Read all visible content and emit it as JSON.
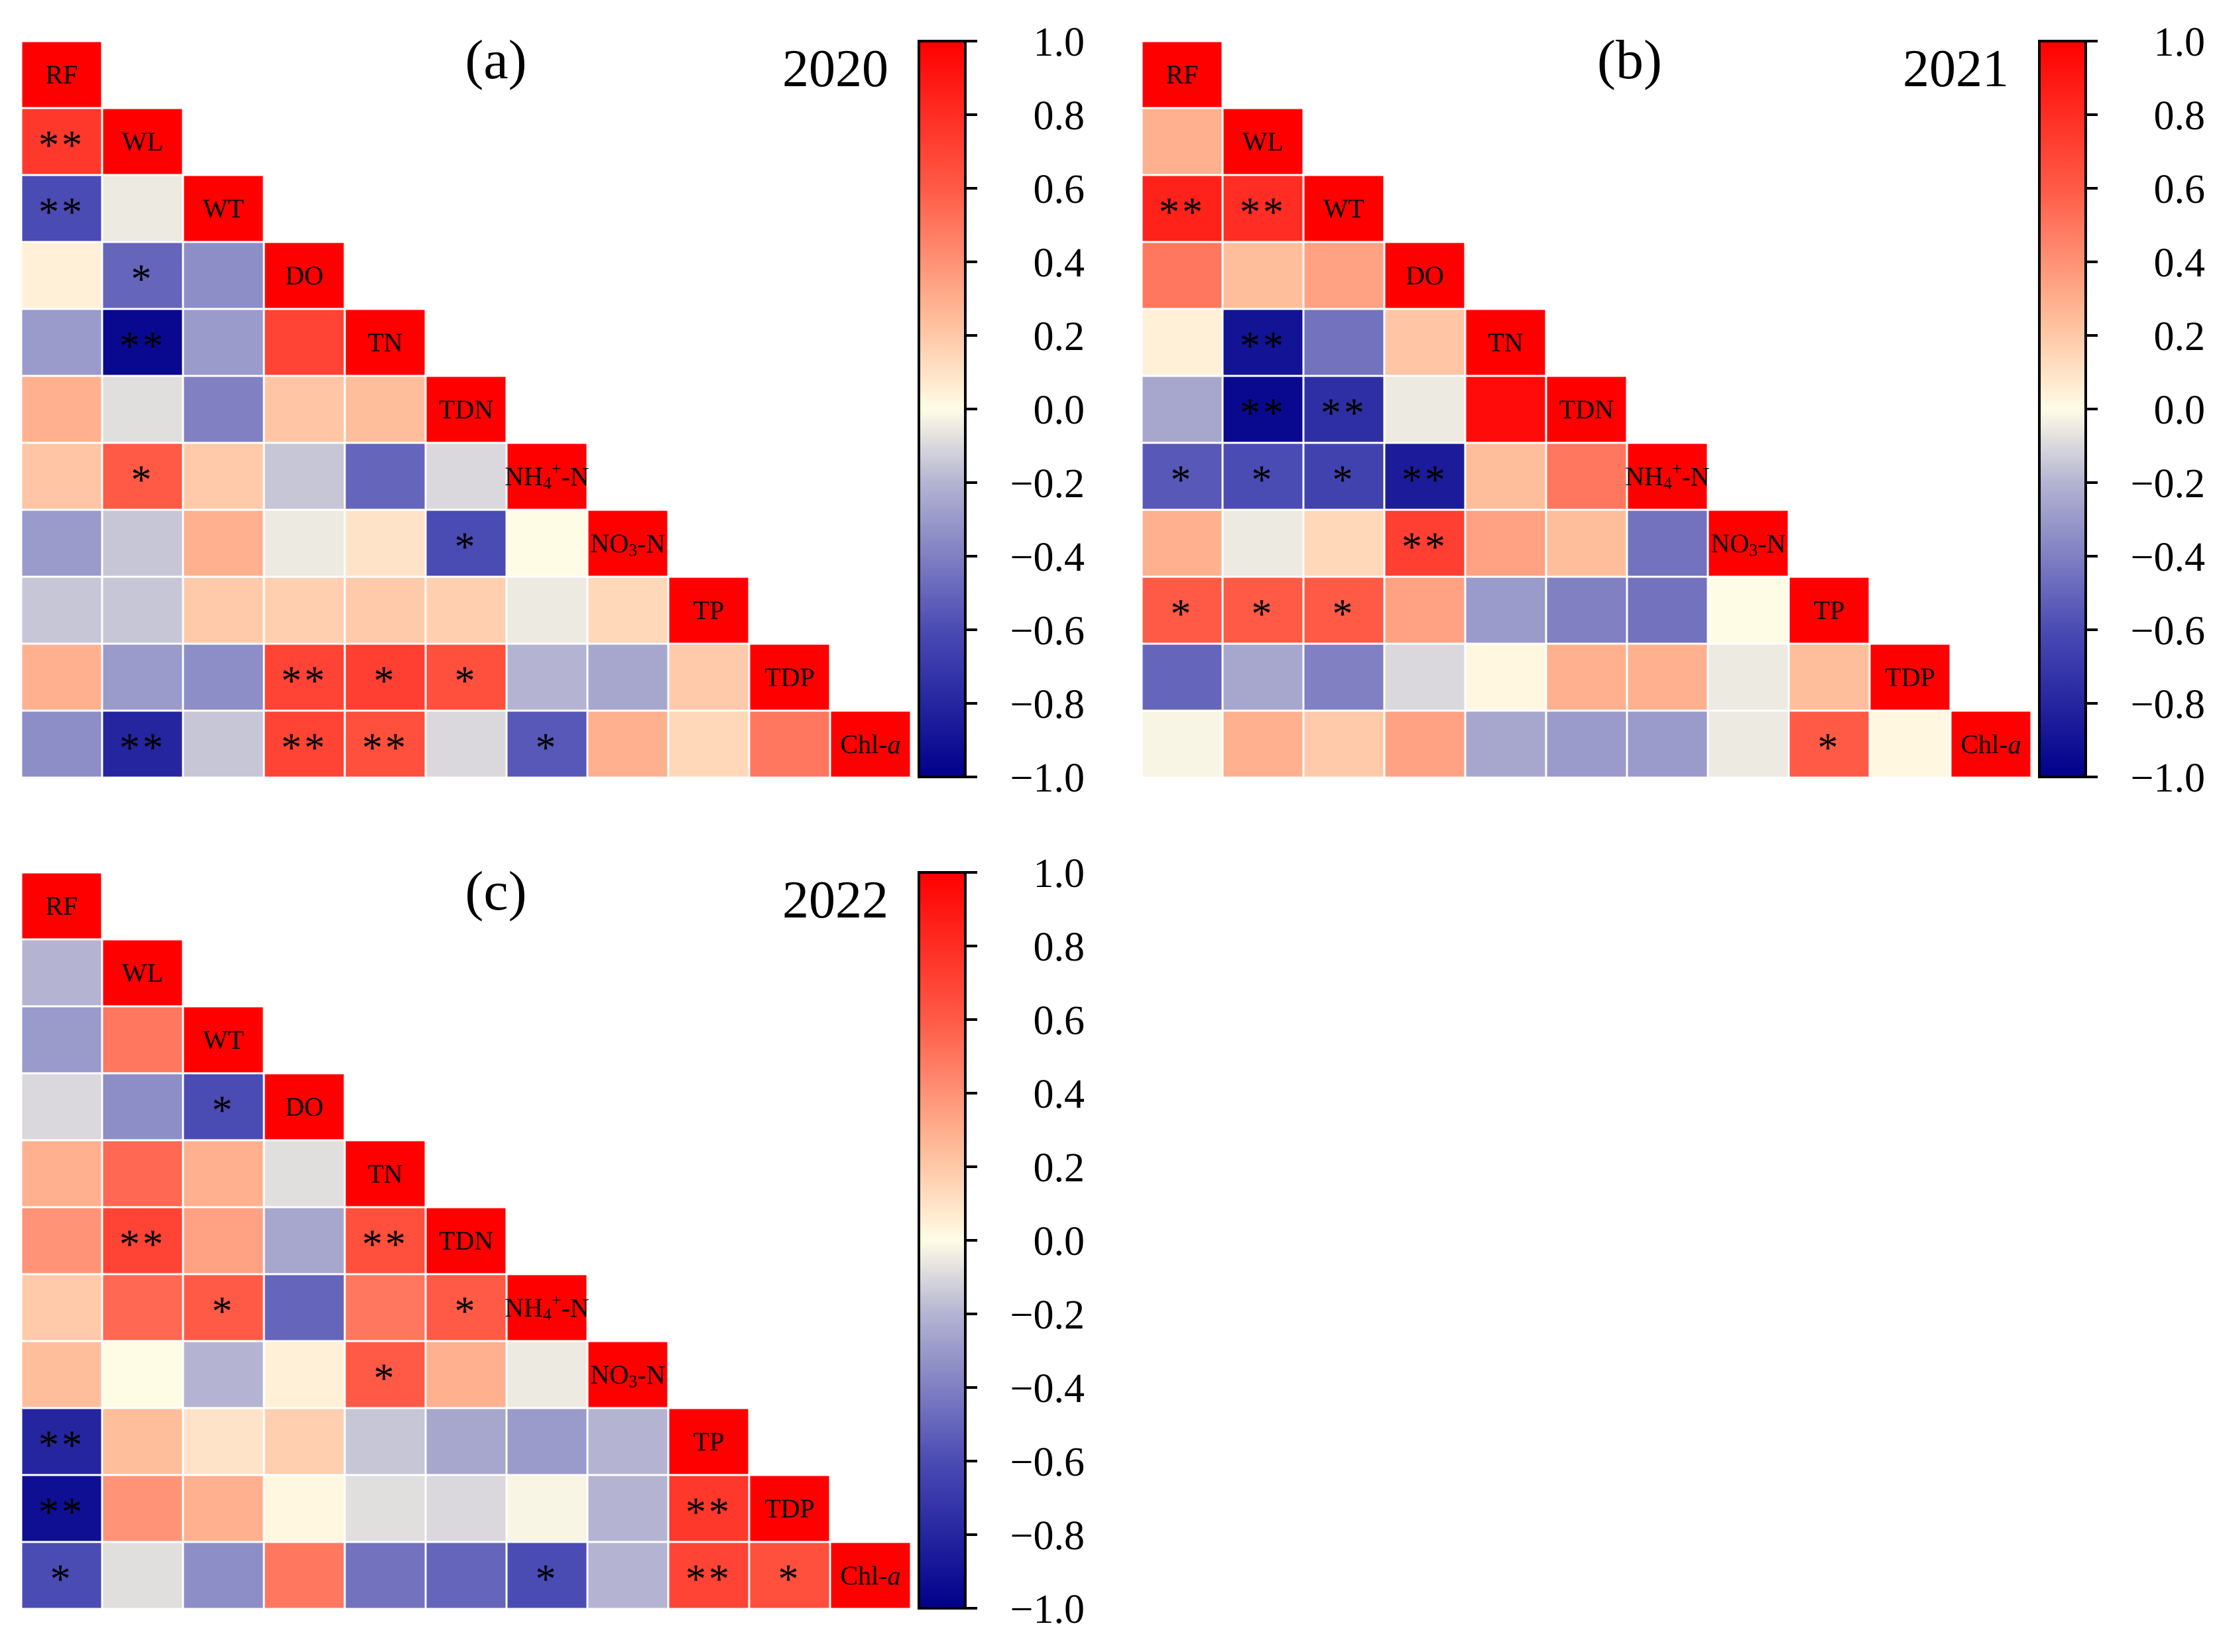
{
  "colors": {
    "scale_min": "#00008b",
    "scale_low": "#4b4bb4",
    "scale_lowmid": "#b4b4d2",
    "scale_mid": "#fffce6",
    "scale_highmid": "#ffbe9b",
    "scale_high": "#ff5a46",
    "scale_max": "#ff0000",
    "diagonal": "#ff0000",
    "grid": "#ffffff"
  },
  "colorbar": {
    "ticks": [
      "1.0",
      "0.8",
      "0.6",
      "0.4",
      "0.2",
      "0.0",
      "−0.2",
      "−0.4",
      "−0.6",
      "−0.8",
      "−1.0"
    ],
    "range": [
      -1.0,
      1.0
    ]
  },
  "chart_data": [
    {
      "type": "heatmap",
      "panel": "(a)",
      "year": "2020",
      "variables": [
        "RF",
        "WL",
        "WT",
        "DO",
        "TN",
        "TDN",
        "NH4+-N",
        "NO3-N",
        "TP",
        "TDP",
        "Chl-a"
      ],
      "matrix": [
        [
          1
        ],
        [
          0.75,
          1
        ],
        [
          -0.6,
          -0.05,
          1
        ],
        [
          0.05,
          -0.5,
          -0.35,
          1
        ],
        [
          -0.3,
          -0.95,
          -0.3,
          0.7,
          1
        ],
        [
          0.3,
          -0.08,
          -0.4,
          0.22,
          0.25,
          1
        ],
        [
          0.22,
          0.6,
          0.2,
          -0.15,
          -0.5,
          -0.1,
          1
        ],
        [
          -0.3,
          -0.15,
          0.3,
          -0.05,
          0.1,
          -0.6,
          0.0,
          1
        ],
        [
          -0.15,
          -0.15,
          0.2,
          0.18,
          0.2,
          0.18,
          -0.05,
          0.15,
          1
        ],
        [
          0.3,
          -0.3,
          -0.35,
          0.7,
          0.72,
          0.65,
          -0.2,
          -0.25,
          0.2,
          1
        ],
        [
          -0.35,
          -0.8,
          -0.15,
          0.7,
          0.65,
          -0.1,
          -0.55,
          0.3,
          0.15,
          0.5,
          1
        ]
      ],
      "significance": [
        [
          ""
        ],
        [
          "**",
          ""
        ],
        [
          "**",
          "",
          ""
        ],
        [
          "",
          "*",
          "",
          ""
        ],
        [
          "",
          "**",
          "",
          "",
          ""
        ],
        [
          "",
          "",
          "",
          "",
          "",
          ""
        ],
        [
          "",
          "*",
          "",
          "",
          "",
          "",
          ""
        ],
        [
          "",
          "",
          "",
          "",
          "",
          "*",
          "",
          ""
        ],
        [
          "",
          "",
          "",
          "",
          "",
          "",
          "",
          "",
          ""
        ],
        [
          "",
          "",
          "",
          "**",
          "*",
          "*",
          "",
          "",
          "",
          ""
        ],
        [
          "",
          "**",
          "",
          "**",
          "**",
          "",
          "*",
          "",
          "",
          "",
          ""
        ]
      ],
      "range": [
        -1.0,
        1.0
      ]
    },
    {
      "type": "heatmap",
      "panel": "(b)",
      "year": "2021",
      "variables": [
        "RF",
        "WL",
        "WT",
        "DO",
        "TN",
        "TDN",
        "NH4+-N",
        "NO3-N",
        "TP",
        "TDP",
        "Chl-a"
      ],
      "matrix": [
        [
          1
        ],
        [
          0.3,
          1
        ],
        [
          0.85,
          0.8,
          1
        ],
        [
          0.5,
          0.25,
          0.35,
          1
        ],
        [
          0.05,
          -0.9,
          -0.45,
          0.22,
          1
        ],
        [
          -0.25,
          -0.95,
          -0.75,
          -0.05,
          0.95,
          1
        ],
        [
          -0.55,
          -0.6,
          -0.65,
          -0.85,
          0.25,
          0.5,
          1
        ],
        [
          0.3,
          -0.05,
          0.15,
          0.72,
          0.35,
          0.25,
          -0.45,
          1
        ],
        [
          0.6,
          0.6,
          0.6,
          0.35,
          -0.3,
          -0.4,
          -0.45,
          0.0,
          1
        ],
        [
          -0.5,
          -0.25,
          -0.4,
          -0.1,
          0.02,
          0.3,
          0.3,
          -0.05,
          0.25,
          1
        ],
        [
          -0.02,
          0.3,
          0.2,
          0.35,
          -0.25,
          -0.3,
          -0.3,
          -0.05,
          0.6,
          0.02,
          1
        ]
      ],
      "significance": [
        [
          ""
        ],
        [
          "",
          ""
        ],
        [
          "**",
          "**",
          ""
        ],
        [
          "",
          "",
          "",
          ""
        ],
        [
          "",
          "**",
          "",
          "",
          ""
        ],
        [
          "",
          "**",
          "**",
          "",
          "",
          ""
        ],
        [
          "*",
          "*",
          "*",
          "**",
          "",
          "",
          ""
        ],
        [
          "",
          "",
          "",
          "**",
          "",
          "",
          "",
          ""
        ],
        [
          "*",
          "*",
          "*",
          "",
          "",
          "",
          "",
          "",
          ""
        ],
        [
          "",
          "",
          "",
          "",
          "",
          "",
          "",
          "",
          "",
          ""
        ],
        [
          "",
          "",
          "",
          "",
          "",
          "",
          "",
          "",
          "*",
          "",
          ""
        ]
      ],
      "range": [
        -1.0,
        1.0
      ]
    },
    {
      "type": "heatmap",
      "panel": "(c)",
      "year": "2022",
      "variables": [
        "RF",
        "WL",
        "WT",
        "DO",
        "TN",
        "TDN",
        "NH4+-N",
        "NO3-N",
        "TP",
        "TDP",
        "Chl-a"
      ],
      "matrix": [
        [
          1
        ],
        [
          -0.2,
          1
        ],
        [
          -0.3,
          0.5,
          1
        ],
        [
          -0.1,
          -0.35,
          -0.6,
          1
        ],
        [
          0.3,
          0.55,
          0.3,
          -0.08,
          1
        ],
        [
          0.4,
          0.7,
          0.35,
          -0.25,
          0.65,
          1
        ],
        [
          0.2,
          0.55,
          0.6,
          -0.5,
          0.5,
          0.6,
          1
        ],
        [
          0.25,
          0.0,
          -0.2,
          0.05,
          0.6,
          0.3,
          -0.05,
          1
        ],
        [
          -0.8,
          0.25,
          0.1,
          0.18,
          -0.15,
          -0.25,
          -0.3,
          -0.2,
          1
        ],
        [
          -0.92,
          0.4,
          0.3,
          0.02,
          -0.08,
          -0.1,
          -0.02,
          -0.2,
          0.75,
          1
        ],
        [
          -0.6,
          -0.08,
          -0.35,
          0.5,
          -0.45,
          -0.5,
          -0.6,
          -0.2,
          0.7,
          0.65,
          1
        ]
      ],
      "significance": [
        [
          ""
        ],
        [
          "",
          ""
        ],
        [
          "",
          "",
          ""
        ],
        [
          "",
          "",
          "*",
          ""
        ],
        [
          "",
          "",
          "",
          "",
          ""
        ],
        [
          "",
          "**",
          "",
          "",
          "**",
          ""
        ],
        [
          "",
          "",
          "*",
          "",
          "",
          "*",
          ""
        ],
        [
          "",
          "",
          "",
          "",
          "*",
          "",
          "",
          ""
        ],
        [
          "**",
          "",
          "",
          "",
          "",
          "",
          "",
          "",
          ""
        ],
        [
          "**",
          "",
          "",
          "",
          "",
          "",
          "",
          "",
          "**",
          ""
        ],
        [
          "*",
          "",
          "",
          "",
          "",
          "",
          "*",
          "",
          "**",
          "*",
          ""
        ]
      ],
      "range": [
        -1.0,
        1.0
      ]
    }
  ]
}
